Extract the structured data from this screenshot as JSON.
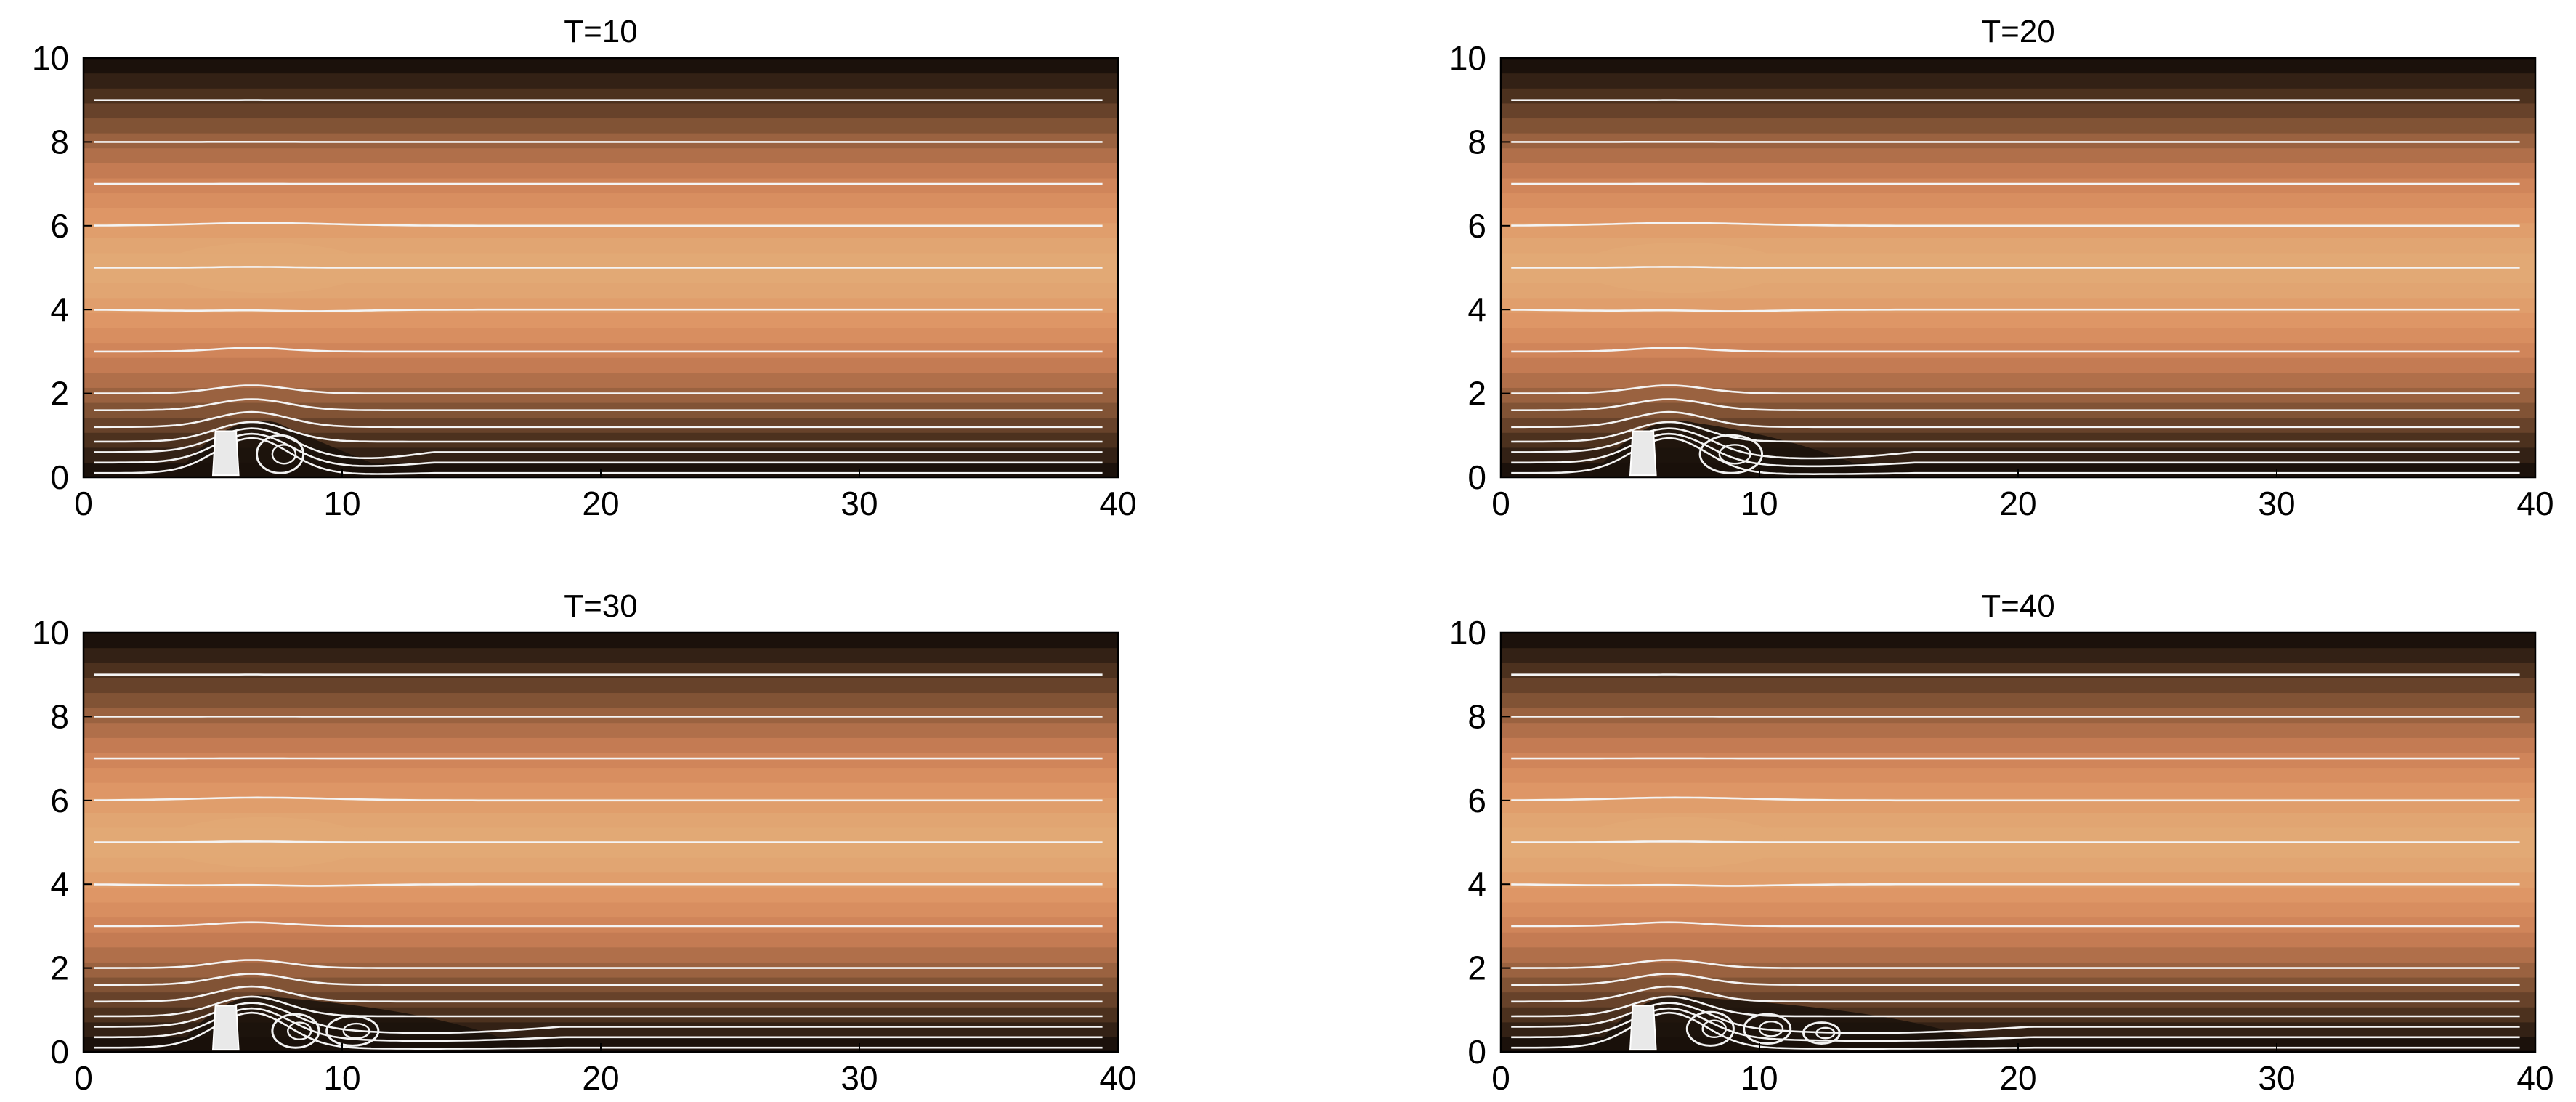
{
  "chart_data": [
    {
      "type": "heatmap",
      "title": "T=10",
      "xlim": [
        0,
        40
      ],
      "ylim": [
        0,
        10
      ],
      "xticks": [
        0,
        10,
        20,
        30,
        40
      ],
      "yticks": [
        0,
        2,
        4,
        6,
        8,
        10
      ],
      "xlabel": "",
      "ylabel": "",
      "colormap": "copper",
      "obstacle": {
        "x_range": [
          5,
          6
        ],
        "height": 1.1
      },
      "streamline_levels": [
        0.1,
        0.35,
        0.6,
        0.85,
        1.2,
        1.6,
        2.0,
        3.0,
        4.0,
        5.0,
        6.0,
        7.0,
        8.0,
        9.0
      ],
      "eddies": [
        {
          "x": 7.6,
          "y": 0.55,
          "rx": 0.9,
          "ry": 0.45
        }
      ],
      "reattachment_x": 9.5
    },
    {
      "type": "heatmap",
      "title": "T=20",
      "xlim": [
        0,
        40
      ],
      "ylim": [
        0,
        10
      ],
      "xticks": [
        0,
        10,
        20,
        30,
        40
      ],
      "yticks": [
        0,
        2,
        4,
        6,
        8,
        10
      ],
      "xlabel": "",
      "ylabel": "",
      "colormap": "copper",
      "obstacle": {
        "x_range": [
          5,
          6
        ],
        "height": 1.1
      },
      "streamline_levels": [
        0.1,
        0.35,
        0.6,
        0.85,
        1.2,
        1.6,
        2.0,
        3.0,
        4.0,
        5.0,
        6.0,
        7.0,
        8.0,
        9.0
      ],
      "eddies": [
        {
          "x": 8.9,
          "y": 0.55,
          "rx": 1.2,
          "ry": 0.45
        }
      ],
      "reattachment_x": 12
    },
    {
      "type": "heatmap",
      "title": "T=30",
      "xlim": [
        0,
        40
      ],
      "ylim": [
        0,
        10
      ],
      "xticks": [
        0,
        10,
        20,
        30,
        40
      ],
      "yticks": [
        0,
        2,
        4,
        6,
        8,
        10
      ],
      "xlabel": "",
      "ylabel": "",
      "colormap": "copper",
      "obstacle": {
        "x_range": [
          5,
          6
        ],
        "height": 1.1
      },
      "streamline_levels": [
        0.1,
        0.35,
        0.6,
        0.85,
        1.2,
        1.6,
        2.0,
        3.0,
        4.0,
        5.0,
        6.0,
        7.0,
        8.0,
        9.0
      ],
      "eddies": [
        {
          "x": 8.2,
          "y": 0.5,
          "rx": 0.9,
          "ry": 0.4
        },
        {
          "x": 10.4,
          "y": 0.5,
          "rx": 1.0,
          "ry": 0.35
        }
      ],
      "reattachment_x": 14.5
    },
    {
      "type": "heatmap",
      "title": "T=40",
      "xlim": [
        0,
        40
      ],
      "ylim": [
        0,
        10
      ],
      "xticks": [
        0,
        10,
        20,
        30,
        40
      ],
      "yticks": [
        0,
        2,
        4,
        6,
        8,
        10
      ],
      "xlabel": "",
      "ylabel": "",
      "colormap": "copper",
      "obstacle": {
        "x_range": [
          5,
          6
        ],
        "height": 1.1
      },
      "streamline_levels": [
        0.1,
        0.35,
        0.6,
        0.85,
        1.2,
        1.6,
        2.0,
        3.0,
        4.0,
        5.0,
        6.0,
        7.0,
        8.0,
        9.0
      ],
      "eddies": [
        {
          "x": 8.1,
          "y": 0.55,
          "rx": 0.9,
          "ry": 0.4
        },
        {
          "x": 10.3,
          "y": 0.55,
          "rx": 0.9,
          "ry": 0.35
        },
        {
          "x": 12.4,
          "y": 0.45,
          "rx": 0.7,
          "ry": 0.25
        }
      ],
      "reattachment_x": 16.5
    }
  ]
}
